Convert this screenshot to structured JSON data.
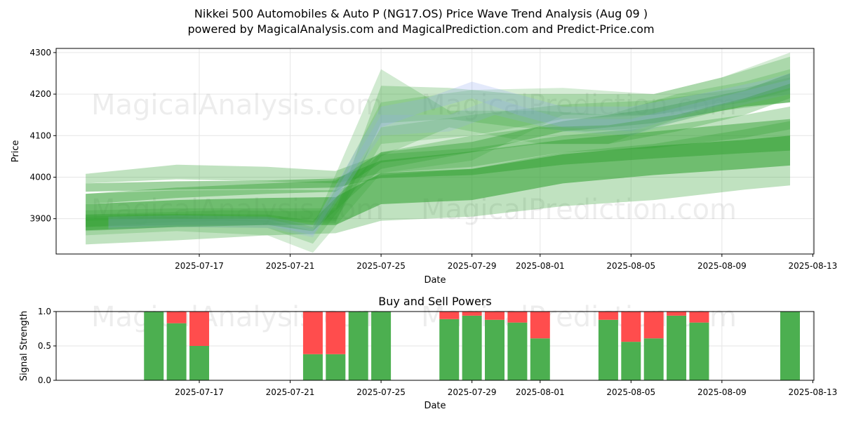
{
  "header": {
    "title_line1": "Nikkei 500 Automobiles & Auto P (NG17.OS) Price Wave Trend Analysis (Aug 09 )",
    "title_line2": "powered by MagicalAnalysis.com and MagicalPrediction.com and Predict-Price.com"
  },
  "watermarks": [
    "MagicalAnalysis.com",
    "MagicalPrediction.com"
  ],
  "colors": {
    "green_band": "#2e9e2e",
    "blue_band": "#8fa8f0",
    "buy": "#4caf50",
    "sell": "#ff4d4d",
    "grid": "#e6e6e6"
  },
  "chart_data": [
    {
      "type": "area",
      "title": "",
      "xlabel": "Date",
      "ylabel": "Price",
      "xlim": [
        "2025-07-11",
        "2025-08-13"
      ],
      "ylim": [
        3815,
        4310
      ],
      "x_ticks": [
        "2025-07-17",
        "2025-07-21",
        "2025-07-25",
        "2025-07-29",
        "2025-08-01",
        "2025-08-05",
        "2025-08-09",
        "2025-08-13"
      ],
      "y_ticks": [
        3900,
        4000,
        4100,
        4200,
        4300
      ],
      "grid": true,
      "series": [
        {
          "color": "green",
          "opacity": 0.45,
          "x": [
            "2025-07-12",
            "2025-07-16",
            "2025-07-20",
            "2025-07-23",
            "2025-07-25",
            "2025-07-29",
            "2025-08-02",
            "2025-08-06",
            "2025-08-10",
            "2025-08-12"
          ],
          "low": [
            3965,
            3970,
            3972,
            3975,
            3998,
            4005,
            4030,
            4045,
            4058,
            4064
          ],
          "high": [
            3985,
            3990,
            3992,
            3997,
            4040,
            4062,
            4090,
            4110,
            4130,
            4140
          ]
        },
        {
          "color": "green",
          "opacity": 0.55,
          "x": [
            "2025-07-12",
            "2025-07-16",
            "2025-07-20",
            "2025-07-23",
            "2025-07-25",
            "2025-07-29",
            "2025-08-02",
            "2025-08-06",
            "2025-08-10",
            "2025-08-12"
          ],
          "low": [
            3872,
            3880,
            3885,
            3885,
            3935,
            3945,
            3985,
            4005,
            4020,
            4028
          ],
          "high": [
            3935,
            3945,
            3950,
            3952,
            4010,
            4020,
            4055,
            4075,
            4090,
            4100
          ]
        },
        {
          "color": "green",
          "opacity": 0.4,
          "x": [
            "2025-07-12",
            "2025-07-16",
            "2025-07-20",
            "2025-07-23",
            "2025-07-25",
            "2025-07-29",
            "2025-08-02",
            "2025-08-06",
            "2025-08-10",
            "2025-08-12"
          ],
          "low": [
            3935,
            3950,
            3960,
            3965,
            4035,
            4060,
            4110,
            4130,
            4170,
            4180
          ],
          "high": [
            3960,
            3975,
            3985,
            3992,
            4060,
            4085,
            4135,
            4165,
            4210,
            4250
          ]
        },
        {
          "color": "green",
          "opacity": 0.3,
          "x": [
            "2025-07-12",
            "2025-07-16",
            "2025-07-20",
            "2025-07-23",
            "2025-07-25",
            "2025-07-29",
            "2025-08-02",
            "2025-08-06",
            "2025-08-10",
            "2025-08-12"
          ],
          "low": [
            3838,
            3848,
            3860,
            3865,
            3895,
            3905,
            3930,
            3945,
            3970,
            3980
          ],
          "high": [
            3960,
            3968,
            3970,
            3968,
            4005,
            4020,
            4060,
            4080,
            4115,
            4135
          ]
        },
        {
          "color": "green",
          "opacity": 0.3,
          "x": [
            "2025-07-12",
            "2025-07-16",
            "2025-07-20",
            "2025-07-23",
            "2025-07-25",
            "2025-07-29",
            "2025-08-02",
            "2025-08-06",
            "2025-08-10",
            "2025-08-12"
          ],
          "low": [
            3985,
            3995,
            3990,
            3985,
            4010,
            4025,
            4060,
            4070,
            4095,
            4115
          ],
          "high": [
            4008,
            4030,
            4025,
            4015,
            4055,
            4070,
            4100,
            4120,
            4150,
            4170
          ]
        },
        {
          "color": "green",
          "opacity": 0.25,
          "x": [
            "2025-07-12",
            "2025-07-15",
            "2025-07-18",
            "2025-07-21",
            "2025-07-23",
            "2025-07-25",
            "2025-07-28",
            "2025-07-31",
            "2025-08-03",
            "2025-08-06",
            "2025-08-09",
            "2025-08-12"
          ],
          "low": [
            3880,
            3890,
            3895,
            3892,
            3890,
            4130,
            4140,
            4120,
            4110,
            4120,
            4160,
            4180
          ],
          "high": [
            3910,
            3915,
            3920,
            3918,
            3920,
            4220,
            4215,
            4200,
            4200,
            4200,
            4240,
            4290
          ]
        },
        {
          "color": "green",
          "opacity": 0.22,
          "x": [
            "2025-07-12",
            "2025-07-16",
            "2025-07-20",
            "2025-07-22",
            "2025-07-25",
            "2025-07-28",
            "2025-08-01",
            "2025-08-04",
            "2025-08-07",
            "2025-08-10",
            "2025-08-12"
          ],
          "low": [
            3870,
            3880,
            3878,
            3840,
            4050,
            4120,
            4080,
            4080,
            4140,
            4170,
            4180
          ],
          "high": [
            3905,
            3910,
            3905,
            3880,
            4260,
            4160,
            4160,
            4150,
            4200,
            4230,
            4260
          ]
        },
        {
          "color": "green",
          "opacity": 0.2,
          "x": [
            "2025-07-12",
            "2025-07-16",
            "2025-07-20",
            "2025-07-22",
            "2025-07-25",
            "2025-07-29",
            "2025-08-02",
            "2025-08-06",
            "2025-08-09",
            "2025-08-12"
          ],
          "low": [
            3860,
            3870,
            3860,
            3818,
            4010,
            4040,
            4150,
            4150,
            4180,
            4200
          ],
          "high": [
            3900,
            3905,
            3895,
            3870,
            4180,
            4210,
            4215,
            4200,
            4240,
            4300
          ]
        },
        {
          "color": "green",
          "opacity": 0.22,
          "x": [
            "2025-07-12",
            "2025-07-16",
            "2025-07-20",
            "2025-07-23",
            "2025-07-25",
            "2025-07-29",
            "2025-08-02",
            "2025-08-06",
            "2025-08-10",
            "2025-08-12"
          ],
          "low": [
            3895,
            3900,
            3900,
            3895,
            4080,
            4100,
            4140,
            4150,
            4180,
            4210
          ],
          "high": [
            3920,
            3925,
            3925,
            3925,
            4120,
            4150,
            4175,
            4185,
            4215,
            4240
          ]
        },
        {
          "color": "blue",
          "opacity": 0.25,
          "x": [
            "2025-07-13",
            "2025-07-16",
            "2025-07-20",
            "2025-07-22",
            "2025-07-25",
            "2025-07-27",
            "2025-07-29",
            "2025-07-31",
            "2025-08-02",
            "2025-08-05",
            "2025-08-08",
            "2025-08-11",
            "2025-08-12"
          ],
          "low": [
            3880,
            3885,
            3885,
            3860,
            4120,
            4160,
            4190,
            4150,
            4120,
            4110,
            4160,
            4200,
            4215
          ],
          "high": [
            3905,
            3908,
            3905,
            3885,
            4170,
            4190,
            4230,
            4200,
            4170,
            4170,
            4200,
            4235,
            4250
          ]
        },
        {
          "color": "blue",
          "opacity": 0.2,
          "x": [
            "2025-07-13",
            "2025-07-16",
            "2025-07-20",
            "2025-07-22",
            "2025-07-25",
            "2025-07-28",
            "2025-07-30",
            "2025-08-02",
            "2025-08-05",
            "2025-08-08",
            "2025-08-12"
          ],
          "low": [
            3875,
            3880,
            3878,
            3855,
            4100,
            4110,
            4150,
            4110,
            4100,
            4150,
            4200
          ],
          "high": [
            3900,
            3900,
            3900,
            3875,
            4150,
            4150,
            4190,
            4140,
            4140,
            4180,
            4235
          ]
        },
        {
          "color": "green",
          "opacity": 0.3,
          "x": [
            "2025-07-12",
            "2025-07-16",
            "2025-07-20",
            "2025-07-22",
            "2025-07-25",
            "2025-07-29",
            "2025-08-01",
            "2025-08-04",
            "2025-08-07",
            "2025-08-10",
            "2025-08-12"
          ],
          "low": [
            3880,
            3885,
            3885,
            3870,
            4020,
            4060,
            4080,
            4080,
            4110,
            4150,
            4190
          ],
          "high": [
            3910,
            3912,
            3910,
            3895,
            4060,
            4100,
            4120,
            4125,
            4150,
            4190,
            4225
          ]
        }
      ]
    },
    {
      "type": "bar",
      "title": "Buy and Sell Powers",
      "xlabel": "Date",
      "ylabel": "Signal Strength",
      "xlim": [
        "2025-07-11",
        "2025-08-13"
      ],
      "ylim": [
        0,
        1.0
      ],
      "x_ticks": [
        "2025-07-17",
        "2025-07-21",
        "2025-07-25",
        "2025-07-29",
        "2025-08-01",
        "2025-08-05",
        "2025-08-09",
        "2025-08-13"
      ],
      "y_ticks": [
        0.0,
        0.5,
        1.0
      ],
      "y_tick_labels": [
        "0.0",
        "0.5",
        "1.0"
      ],
      "grid": true,
      "dates": [
        "2025-07-15",
        "2025-07-16",
        "2025-07-17",
        "2025-07-22",
        "2025-07-23",
        "2025-07-24",
        "2025-07-25",
        "2025-07-28",
        "2025-07-29",
        "2025-07-30",
        "2025-07-31",
        "2025-08-01",
        "2025-08-04",
        "2025-08-05",
        "2025-08-06",
        "2025-08-07",
        "2025-08-08",
        "2025-08-12"
      ],
      "series": [
        {
          "name": "Buy",
          "color": "#4caf50",
          "values": [
            1.0,
            0.83,
            0.5,
            0.38,
            0.38,
            1.0,
            1.0,
            0.89,
            0.94,
            0.88,
            0.84,
            0.61,
            0.88,
            0.56,
            0.61,
            0.94,
            0.84,
            1.0
          ]
        },
        {
          "name": "Sell",
          "color": "#ff4d4d",
          "values": [
            0.0,
            0.17,
            0.5,
            0.62,
            0.62,
            0.0,
            0.0,
            0.11,
            0.06,
            0.12,
            0.16,
            0.39,
            0.12,
            0.44,
            0.39,
            0.06,
            0.16,
            0.0
          ]
        }
      ]
    }
  ]
}
